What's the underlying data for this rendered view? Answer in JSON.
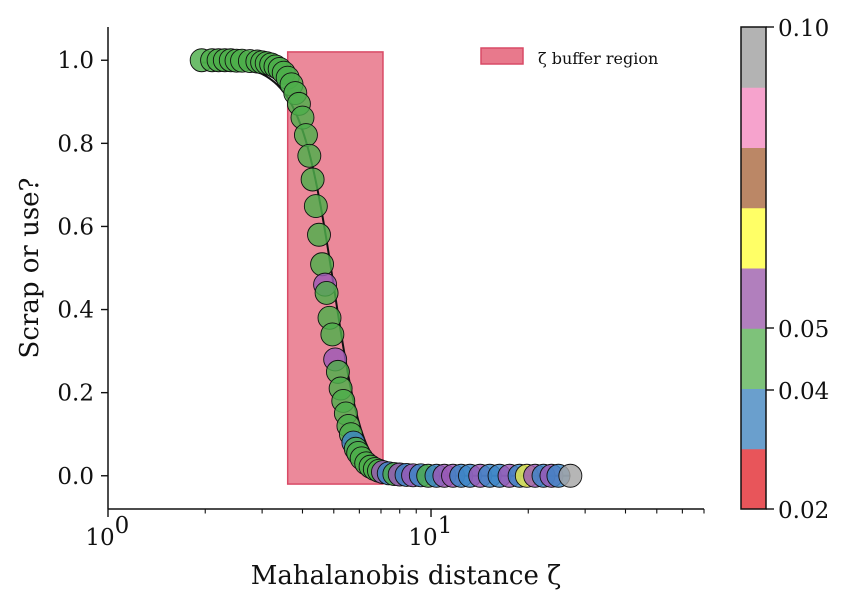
{
  "chart_data": {
    "type": "scatter",
    "title": "",
    "xlabel": "Mahalanobis distance ζ",
    "ylabel": "Scrap or use?",
    "x_scale": "log",
    "xlim": [
      1,
      70
    ],
    "ylim": [
      -0.08,
      1.08
    ],
    "grid": false,
    "x_ticks": [
      {
        "value": 1,
        "label": "10",
        "sup": "0"
      },
      {
        "value": 10,
        "label": "10",
        "sup": "1"
      }
    ],
    "y_ticks": [
      {
        "value": 0.0,
        "label": "0.0"
      },
      {
        "value": 0.2,
        "label": "0.2"
      },
      {
        "value": 0.4,
        "label": "0.4"
      },
      {
        "value": 0.6,
        "label": "0.6"
      },
      {
        "value": 0.8,
        "label": "0.8"
      },
      {
        "value": 1.0,
        "label": "1.0"
      }
    ],
    "buffer_region": {
      "x0": 3.6,
      "x1": 7.1,
      "y0": -0.02,
      "y1": 1.02,
      "color": "#e8798c",
      "edge": "#d94a66"
    },
    "legend": {
      "label": "ζ buffer region",
      "placement": "top-right"
    },
    "sigmoid": {
      "center": 4.9,
      "steepness": 0.115
    },
    "colorbar": {
      "ticks": [
        {
          "value": 0.02,
          "label": "0.02"
        },
        {
          "value": 0.04,
          "label": "0.04"
        },
        {
          "value": 0.05,
          "label": "0.05"
        },
        {
          "value": 0.1,
          "label": "0.10"
        }
      ],
      "colors_bottom_to_top": [
        "#e8555a",
        "#6a9fcd",
        "#7ec27a",
        "#b17fbd",
        "#ffff66",
        "#bb8766",
        "#f6a3cd",
        "#b3b3b3"
      ]
    },
    "point_colors": {
      "green": "#4daf4a",
      "blue": "#3d85c6",
      "purple": "#9b59b6",
      "yellow": "#e8e84a",
      "gray": "#a6a6a6"
    },
    "points": [
      {
        "x": 1.95,
        "y": 1.0,
        "c": "green"
      },
      {
        "x": 2.1,
        "y": 1.0,
        "c": "green"
      },
      {
        "x": 2.2,
        "y": 1.0,
        "c": "green"
      },
      {
        "x": 2.3,
        "y": 1.0,
        "c": "green"
      },
      {
        "x": 2.4,
        "y": 1.0,
        "c": "green"
      },
      {
        "x": 2.5,
        "y": 0.999,
        "c": "green"
      },
      {
        "x": 2.6,
        "y": 0.999,
        "c": "green"
      },
      {
        "x": 2.75,
        "y": 0.998,
        "c": "green"
      },
      {
        "x": 2.9,
        "y": 0.997,
        "c": "green"
      },
      {
        "x": 3.0,
        "y": 0.995,
        "c": "green"
      },
      {
        "x": 3.1,
        "y": 0.993,
        "c": "green"
      },
      {
        "x": 3.2,
        "y": 0.99,
        "c": "green"
      },
      {
        "x": 3.3,
        "y": 0.985,
        "c": "green"
      },
      {
        "x": 3.4,
        "y": 0.979,
        "c": "green"
      },
      {
        "x": 3.5,
        "y": 0.97,
        "c": "green"
      },
      {
        "x": 3.6,
        "y": 0.958,
        "c": "green"
      },
      {
        "x": 3.7,
        "y": 0.942,
        "c": "green"
      },
      {
        "x": 3.8,
        "y": 0.921,
        "c": "green"
      },
      {
        "x": 3.9,
        "y": 0.895,
        "c": "green"
      },
      {
        "x": 4.0,
        "y": 0.862,
        "c": "green"
      },
      {
        "x": 4.1,
        "y": 0.82,
        "c": "green"
      },
      {
        "x": 4.2,
        "y": 0.77,
        "c": "green"
      },
      {
        "x": 4.3,
        "y": 0.713,
        "c": "green"
      },
      {
        "x": 4.4,
        "y": 0.649,
        "c": "green"
      },
      {
        "x": 4.5,
        "y": 0.58,
        "c": "green"
      },
      {
        "x": 4.6,
        "y": 0.509,
        "c": "green"
      },
      {
        "x": 4.7,
        "y": 0.46,
        "c": "purple"
      },
      {
        "x": 4.75,
        "y": 0.44,
        "c": "green"
      },
      {
        "x": 4.85,
        "y": 0.38,
        "c": "green"
      },
      {
        "x": 4.95,
        "y": 0.34,
        "c": "green"
      },
      {
        "x": 5.05,
        "y": 0.28,
        "c": "purple"
      },
      {
        "x": 5.15,
        "y": 0.25,
        "c": "green"
      },
      {
        "x": 5.25,
        "y": 0.21,
        "c": "green"
      },
      {
        "x": 5.35,
        "y": 0.18,
        "c": "green"
      },
      {
        "x": 5.45,
        "y": 0.15,
        "c": "green"
      },
      {
        "x": 5.55,
        "y": 0.12,
        "c": "green"
      },
      {
        "x": 5.65,
        "y": 0.1,
        "c": "green"
      },
      {
        "x": 5.75,
        "y": 0.08,
        "c": "blue"
      },
      {
        "x": 5.85,
        "y": 0.065,
        "c": "green"
      },
      {
        "x": 5.95,
        "y": 0.055,
        "c": "green"
      },
      {
        "x": 6.1,
        "y": 0.042,
        "c": "green"
      },
      {
        "x": 6.3,
        "y": 0.03,
        "c": "green"
      },
      {
        "x": 6.5,
        "y": 0.022,
        "c": "green"
      },
      {
        "x": 6.7,
        "y": 0.016,
        "c": "green"
      },
      {
        "x": 6.9,
        "y": 0.012,
        "c": "green"
      },
      {
        "x": 7.1,
        "y": 0.009,
        "c": "purple"
      },
      {
        "x": 7.4,
        "y": 0.006,
        "c": "blue"
      },
      {
        "x": 7.7,
        "y": 0.004,
        "c": "green"
      },
      {
        "x": 8.0,
        "y": 0.003,
        "c": "purple"
      },
      {
        "x": 8.4,
        "y": 0.002,
        "c": "blue"
      },
      {
        "x": 8.8,
        "y": 0.001,
        "c": "purple"
      },
      {
        "x": 9.3,
        "y": 0.001,
        "c": "blue"
      },
      {
        "x": 9.8,
        "y": 0.0,
        "c": "green"
      },
      {
        "x": 10.4,
        "y": 0.0,
        "c": "blue"
      },
      {
        "x": 11.0,
        "y": 0.0,
        "c": "purple"
      },
      {
        "x": 11.7,
        "y": 0.0,
        "c": "purple"
      },
      {
        "x": 12.4,
        "y": 0.0,
        "c": "blue"
      },
      {
        "x": 13.2,
        "y": 0.0,
        "c": "blue"
      },
      {
        "x": 14.2,
        "y": 0.0,
        "c": "purple"
      },
      {
        "x": 15.2,
        "y": 0.0,
        "c": "blue"
      },
      {
        "x": 16.3,
        "y": 0.0,
        "c": "blue"
      },
      {
        "x": 17.5,
        "y": 0.0,
        "c": "purple"
      },
      {
        "x": 18.8,
        "y": 0.0,
        "c": "blue"
      },
      {
        "x": 19.8,
        "y": 0.0,
        "c": "yellow"
      },
      {
        "x": 21.0,
        "y": 0.0,
        "c": "purple"
      },
      {
        "x": 22.3,
        "y": 0.0,
        "c": "blue"
      },
      {
        "x": 23.6,
        "y": 0.0,
        "c": "purple"
      },
      {
        "x": 24.8,
        "y": 0.0,
        "c": "blue"
      },
      {
        "x": 27.0,
        "y": 0.0,
        "c": "gray"
      }
    ]
  }
}
